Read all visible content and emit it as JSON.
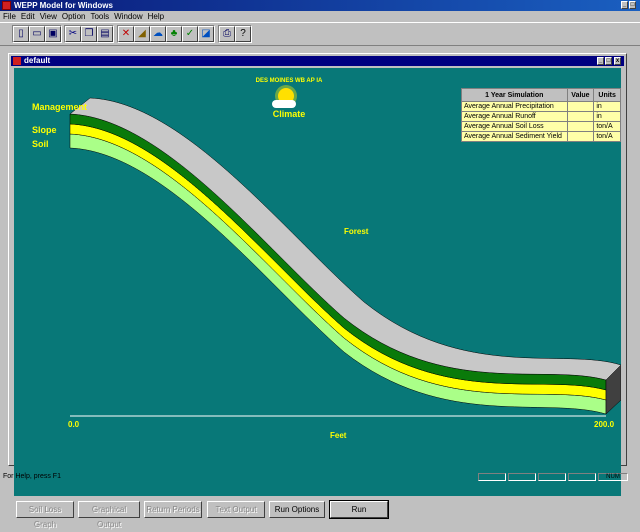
{
  "app": {
    "title": "WEPP Model for Windows"
  },
  "menu": [
    "File",
    "Edit",
    "View",
    "Option",
    "Tools",
    "Window",
    "Help"
  ],
  "toolbar": {
    "icons": [
      "new-file-icon",
      "open-folder-icon",
      "save-disk-icon",
      "cut-icon",
      "copy-icon",
      "paste-icon",
      "erase-icon",
      "soil-icon",
      "climate-icon",
      "management-icon",
      "check-icon",
      "chart-icon",
      "print-icon",
      "help-icon"
    ]
  },
  "window": {
    "title": "default"
  },
  "climate": {
    "station": "DES MOINES WB AP IA",
    "label": "Climate"
  },
  "profile": {
    "layer_labels": {
      "management": "Management",
      "slope": "Slope",
      "soil": "Soil"
    },
    "management_name": "Forest",
    "axis_start": "0.0",
    "axis_end": "200.0",
    "axis_label": "Feet",
    "colors": {
      "top": "#c8c8c8",
      "management": "#0a7a0a",
      "slope": "#ffff00",
      "soil": "#aaff88"
    }
  },
  "sim_table": {
    "headers": [
      "1 Year Simulation",
      "Value",
      "Units"
    ],
    "rows": [
      {
        "label": "Average Annual Precipitation",
        "value": "",
        "units": "in"
      },
      {
        "label": "Average Annual Runoff",
        "value": "",
        "units": "in"
      },
      {
        "label": "Average Annual Soil Loss",
        "value": "",
        "units": "ton/A"
      },
      {
        "label": "Average Annual Sediment Yield",
        "value": "",
        "units": "ton/A"
      }
    ]
  },
  "buttons": {
    "soil_loss_graph": "Soil Loss Graph",
    "graphical_output": "Graphical Output",
    "return_periods": "Return Periods",
    "text_output": "Text Output",
    "run_options": "Run Options",
    "run": "Run"
  },
  "status": {
    "help_text": "For Help, press F1",
    "num": "NUM"
  }
}
